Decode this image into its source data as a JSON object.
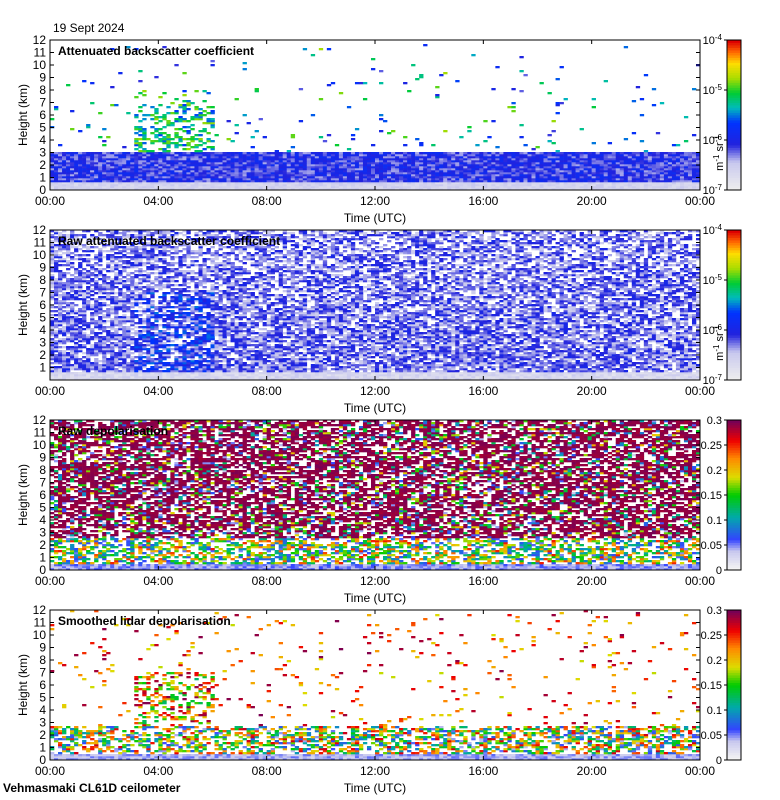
{
  "header": {
    "date": "19 Sept 2024"
  },
  "footer": {
    "site": "Vehmasmaki CL61D ceilometer"
  },
  "chart_data": [
    {
      "type": "heatmap",
      "title": "Attenuated backscatter coefficient",
      "xlabel": "Time (UTC)",
      "ylabel": "Height (km)",
      "xticks": [
        "00:00",
        "04:00",
        "08:00",
        "12:00",
        "16:00",
        "20:00",
        "00:00"
      ],
      "yticks": [
        "0",
        "1",
        "2",
        "3",
        "4",
        "5",
        "6",
        "7",
        "8",
        "9",
        "10",
        "11",
        "12"
      ],
      "ylim": [
        0,
        12
      ],
      "colorbar": {
        "scale": "log",
        "ticks": [
          "10^-7",
          "10^-6",
          "10^-5",
          "10^-4"
        ],
        "label": "m^-1 sr^-1",
        "range": [
          1e-07,
          0.0001
        ]
      },
      "features": {
        "boundary_layer_top_km": 3.0,
        "cloud_event_hours": [
          3,
          6
        ],
        "cloud_event_top_km": 8.0
      }
    },
    {
      "type": "heatmap",
      "title": "Raw attenuated backscatter coefficient",
      "xlabel": "Time (UTC)",
      "ylabel": "Height (km)",
      "xticks": [
        "00:00",
        "04:00",
        "08:00",
        "12:00",
        "16:00",
        "20:00",
        "00:00"
      ],
      "yticks": [
        "1",
        "2",
        "3",
        "4",
        "5",
        "6",
        "7",
        "8",
        "9",
        "10",
        "11",
        "12"
      ],
      "ylim": [
        0,
        12
      ],
      "colorbar": {
        "scale": "log",
        "ticks": [
          "10^-7",
          "10^-6",
          "10^-5",
          "10^-4"
        ],
        "label": "m^-1 sr^-1",
        "range": [
          1e-07,
          0.0001
        ]
      },
      "features": {
        "noise_level": "high",
        "cloud_event_hours": [
          3,
          6
        ]
      }
    },
    {
      "type": "heatmap",
      "title": "Raw depolarisation",
      "xlabel": "Time (UTC)",
      "ylabel": "Height (km)",
      "xticks": [
        "00:00",
        "04:00",
        "08:00",
        "12:00",
        "16:00",
        "20:00",
        "00:00"
      ],
      "yticks": [
        "0",
        "1",
        "2",
        "3",
        "4",
        "5",
        "6",
        "7",
        "8",
        "9",
        "10",
        "11",
        "12"
      ],
      "ylim": [
        0,
        12
      ],
      "colorbar": {
        "scale": "linear",
        "ticks": [
          "0",
          "0.05",
          "0.1",
          "0.15",
          "0.2",
          "0.25",
          "0.3"
        ],
        "label": "",
        "range": [
          0,
          0.3
        ]
      },
      "features": {
        "noise_level": "high",
        "boundary_layer_top_km": 2.5
      }
    },
    {
      "type": "heatmap",
      "title": "Smoothed lidar depolarisation",
      "xlabel": "Time (UTC)",
      "ylabel": "Height (km)",
      "xticks": [
        "00:00",
        "04:00",
        "08:00",
        "12:00",
        "16:00",
        "20:00",
        "00:00"
      ],
      "yticks": [
        "0",
        "1",
        "2",
        "3",
        "4",
        "5",
        "6",
        "7",
        "8",
        "9",
        "10",
        "11",
        "12"
      ],
      "ylim": [
        0,
        12
      ],
      "colorbar": {
        "scale": "linear",
        "ticks": [
          "0",
          "0.05",
          "0.1",
          "0.15",
          "0.2",
          "0.25",
          "0.3"
        ],
        "label": "",
        "range": [
          0,
          0.3
        ]
      },
      "features": {
        "boundary_layer_top_km": 2.8,
        "cloud_event_hours": [
          3,
          6
        ]
      }
    }
  ]
}
